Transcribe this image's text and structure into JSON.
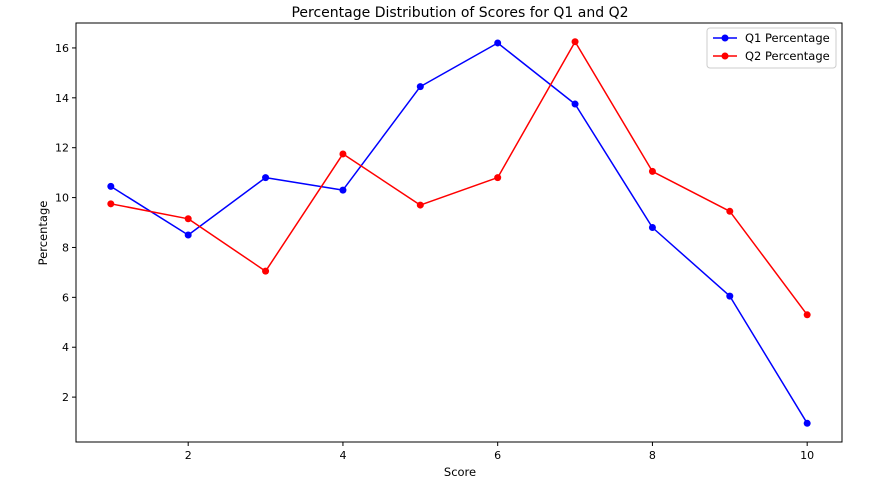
{
  "chart_data": {
    "type": "line",
    "title": "Percentage Distribution of Scores for Q1 and Q2",
    "xlabel": "Score",
    "ylabel": "Percentage",
    "x": [
      1,
      2,
      3,
      4,
      5,
      6,
      7,
      8,
      9,
      10
    ],
    "xlim": [
      0.55,
      10.45
    ],
    "ylim": [
      0.2,
      17.0
    ],
    "xticks": [
      2,
      4,
      6,
      8,
      10
    ],
    "yticks": [
      2,
      4,
      6,
      8,
      10,
      12,
      14,
      16
    ],
    "grid": false,
    "legend_position": "top-right",
    "series": [
      {
        "name": "Q1 Percentage",
        "color": "#0000ff",
        "marker": "circle",
        "values": [
          10.45,
          8.5,
          10.8,
          10.3,
          14.45,
          16.2,
          13.75,
          8.8,
          6.05,
          0.95
        ]
      },
      {
        "name": "Q2 Percentage",
        "color": "#ff0000",
        "marker": "circle",
        "values": [
          9.75,
          9.15,
          7.05,
          11.75,
          9.7,
          10.8,
          16.25,
          11.05,
          9.45,
          5.3
        ]
      }
    ]
  }
}
